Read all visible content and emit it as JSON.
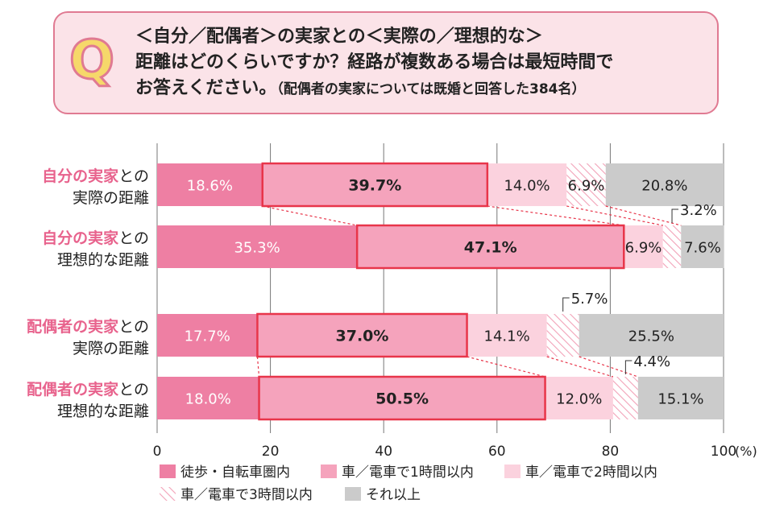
{
  "question": {
    "mark": "Q",
    "line1": "＜自分／配偶者＞の実家との＜実際の／理想的な＞",
    "line2": "距離はどのくらいですか？経路が複数ある場合は最短時間で",
    "line3": "お答えください。",
    "note": "（配偶者の実家については既婚と回答した384名）"
  },
  "colors": {
    "walk": "#ee7fa3",
    "car1h": "#f5a3bc",
    "car2h": "#fbd2de",
    "car3h": "#ffffff",
    "hatch": "#f2a2b8",
    "more": "#cbcbcb",
    "highlight": "#e8354a",
    "labelPink": "#e8638d"
  },
  "chart_data": {
    "type": "bar",
    "orientation": "horizontal",
    "stacked": true,
    "categories": [
      {
        "highlight": "自分の実家",
        "rest": "との",
        "line2": "実際の距離"
      },
      {
        "highlight": "自分の実家",
        "rest": "との",
        "line2": "理想的な距離"
      },
      {
        "highlight": "配偶者の実家",
        "rest": "との",
        "line2": "実際の距離"
      },
      {
        "highlight": "配偶者の実家",
        "rest": "との",
        "line2": "理想的な距離"
      }
    ],
    "series": [
      {
        "key": "walk",
        "name": "徒歩・自転車圏内",
        "values": [
          18.6,
          35.3,
          17.7,
          18.0
        ],
        "labels": [
          "18.6%",
          "35.3%",
          "17.7%",
          "18.0%"
        ]
      },
      {
        "key": "car1h",
        "name": "車／電車で1時間以内",
        "values": [
          39.7,
          47.1,
          37.0,
          50.5
        ],
        "labels": [
          "39.7%",
          "47.1%",
          "37.0%",
          "50.5%"
        ]
      },
      {
        "key": "car2h",
        "name": "車／電車で2時間以内",
        "values": [
          14.0,
          6.9,
          14.1,
          12.0
        ],
        "labels": [
          "14.0%",
          "6.9%",
          "14.1%",
          "12.0%"
        ]
      },
      {
        "key": "car3h",
        "name": "車／電車で3時間以内",
        "values": [
          6.9,
          3.2,
          5.7,
          4.4
        ],
        "labels": [
          "6.9%",
          "3.2%",
          "5.7%",
          "4.4%"
        ]
      },
      {
        "key": "more",
        "name": "それ以上",
        "values": [
          20.8,
          7.6,
          25.5,
          15.1
        ],
        "labels": [
          "20.8%",
          "7.6%",
          "25.5%",
          "15.1%"
        ]
      }
    ],
    "xlim": [
      0,
      100
    ],
    "xticks": [
      "0",
      "20",
      "40",
      "60",
      "80",
      "100"
    ],
    "xunit": "(%)",
    "grid": true,
    "legend_position": "bottom"
  }
}
